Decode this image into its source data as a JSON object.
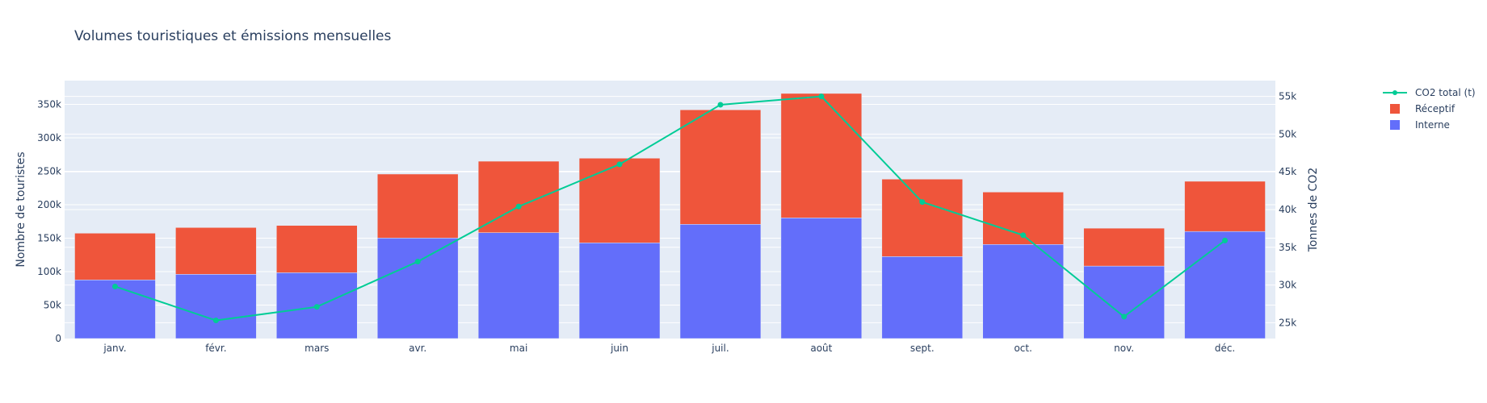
{
  "chart_data": {
    "type": "bar",
    "barmode": "stack",
    "title": "Volumes touristiques et émissions mensuelles",
    "categories": [
      "janv.",
      "févr.",
      "mars",
      "avr.",
      "mai",
      "juin",
      "juil.",
      "août",
      "sept.",
      "oct.",
      "nov.",
      "déc."
    ],
    "series": [
      {
        "name": "Interne",
        "type": "bar",
        "axis": "left",
        "color": "#636efa",
        "values": [
          87600,
          96000,
          98400,
          150200,
          158200,
          143000,
          170700,
          180300,
          122500,
          140600,
          108300,
          160000
        ]
      },
      {
        "name": "Réceptif",
        "type": "bar",
        "axis": "left",
        "color": "#EF553B",
        "values": [
          69800,
          69900,
          70600,
          95600,
          106800,
          126500,
          171100,
          186000,
          115700,
          78300,
          56600,
          75000
        ]
      },
      {
        "name": "CO2 total (t)",
        "type": "line",
        "axis": "right",
        "color": "#00cc96",
        "values": [
          29800,
          25300,
          27100,
          33100,
          40400,
          46000,
          53900,
          55000,
          41000,
          36600,
          25800,
          35900
        ]
      }
    ],
    "ylabel": "Nombre de touristes",
    "y2label": "Tonnes de CO2",
    "ylim": [
      0,
      385500
    ],
    "y2lim": [
      22900,
      57100
    ],
    "yticks": [
      0,
      50000,
      100000,
      150000,
      200000,
      250000,
      300000,
      350000
    ],
    "ytick_labels": [
      "0",
      "50k",
      "100k",
      "150k",
      "200k",
      "250k",
      "300k",
      "350k"
    ],
    "y2ticks": [
      25000,
      30000,
      35000,
      40000,
      45000,
      50000,
      55000
    ],
    "y2tick_labels": [
      "25k",
      "30k",
      "35k",
      "40k",
      "45k",
      "50k",
      "55k"
    ],
    "legend": {
      "placement": "top-right-outside",
      "order": [
        "CO2 total (t)",
        "Réceptif",
        "Interne"
      ]
    },
    "grid": true,
    "colors": {
      "plot_bg": "#E5ECF6",
      "grid": "#ffffff",
      "text": "#2a3f5f"
    }
  }
}
